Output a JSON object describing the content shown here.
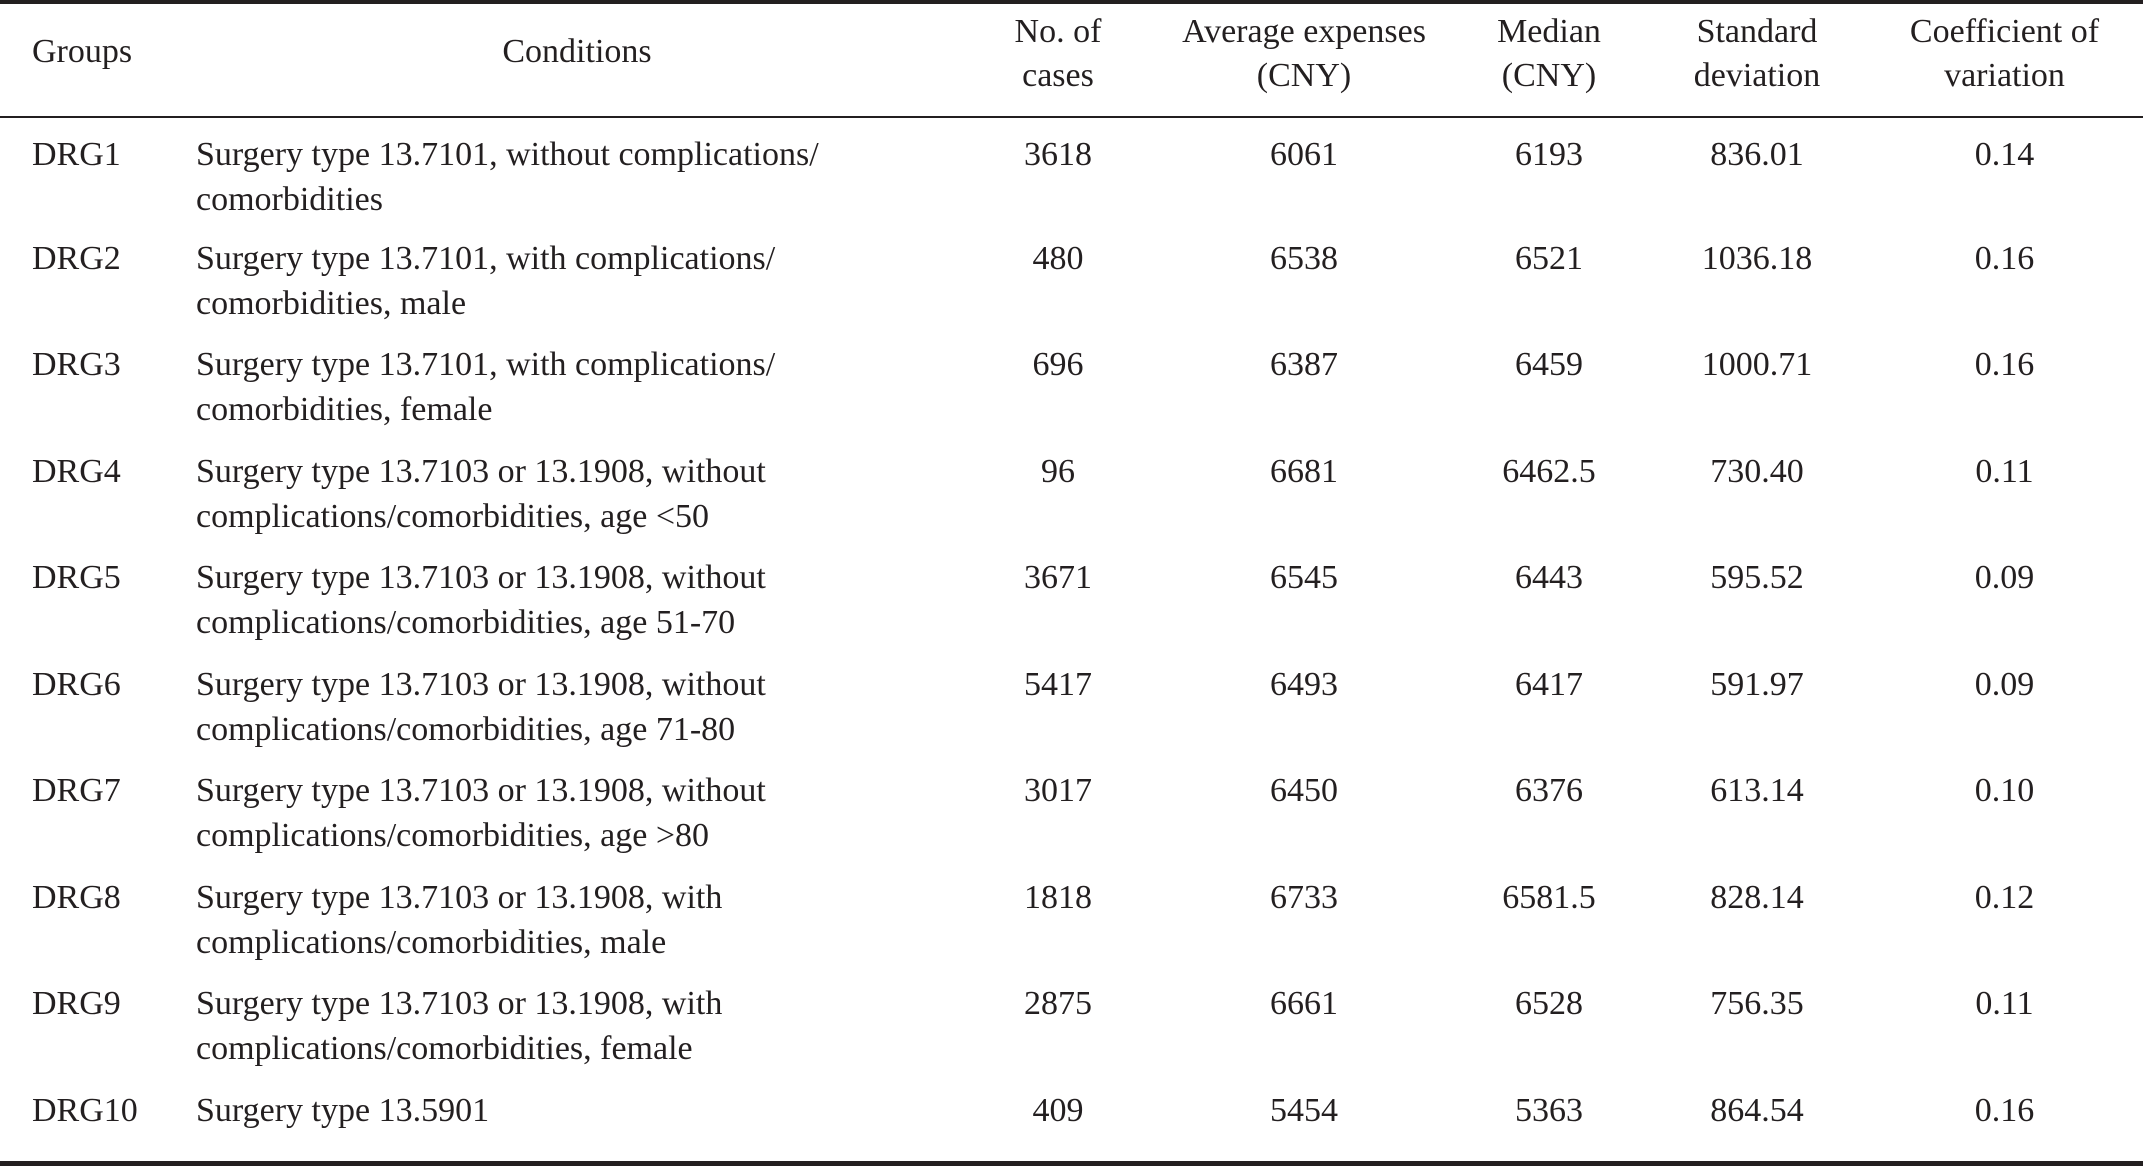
{
  "table": {
    "headers": [
      {
        "key": "group",
        "label": "Groups"
      },
      {
        "key": "conditions",
        "label": "Conditions"
      },
      {
        "key": "cases",
        "label": "No. of\ncases"
      },
      {
        "key": "avg",
        "label": "Average expenses\n(CNY)"
      },
      {
        "key": "median",
        "label": "Median\n(CNY)"
      },
      {
        "key": "sd",
        "label": "Standard\ndeviation"
      },
      {
        "key": "cv",
        "label": "Coefficient of\nvariation"
      }
    ],
    "rows": [
      {
        "group": "DRG1",
        "conditions": "Surgery type 13.7101, without complications/ comorbidities",
        "cases": "3618",
        "avg": "6061",
        "median": "6193",
        "sd": "836.01",
        "cv": "0.14"
      },
      {
        "group": "DRG2",
        "conditions": "Surgery type 13.7101, with complications/ comorbidities, male",
        "cases": "480",
        "avg": "6538",
        "median": "6521",
        "sd": "1036.18",
        "cv": "0.16"
      },
      {
        "group": "DRG3",
        "conditions": "Surgery type 13.7101, with complications/ comorbidities, female",
        "cases": "696",
        "avg": "6387",
        "median": "6459",
        "sd": "1000.71",
        "cv": "0.16"
      },
      {
        "group": "DRG4",
        "conditions": "Surgery type 13.7103 or 13.1908, without complications/comorbidities, age <50",
        "cases": "96",
        "avg": "6681",
        "median": "6462.5",
        "sd": "730.40",
        "cv": "0.11"
      },
      {
        "group": "DRG5",
        "conditions": "Surgery type 13.7103 or 13.1908, without complications/comorbidities, age 51-70",
        "cases": "3671",
        "avg": "6545",
        "median": "6443",
        "sd": "595.52",
        "cv": "0.09"
      },
      {
        "group": "DRG6",
        "conditions": "Surgery type 13.7103 or 13.1908, without complications/comorbidities, age 71-80",
        "cases": "5417",
        "avg": "6493",
        "median": "6417",
        "sd": "591.97",
        "cv": "0.09"
      },
      {
        "group": "DRG7",
        "conditions": "Surgery type 13.7103 or 13.1908, without complications/comorbidities, age >80",
        "cases": "3017",
        "avg": "6450",
        "median": "6376",
        "sd": "613.14",
        "cv": "0.10"
      },
      {
        "group": "DRG8",
        "conditions": "Surgery type 13.7103 or 13.1908, with complications/comorbidities, male",
        "cases": "1818",
        "avg": "6733",
        "median": "6581.5",
        "sd": "828.14",
        "cv": "0.12"
      },
      {
        "group": "DRG9",
        "conditions": "Surgery type 13.7103 or 13.1908, with complications/comorbidities, female",
        "cases": "2875",
        "avg": "6661",
        "median": "6528",
        "sd": "756.35",
        "cv": "0.11"
      },
      {
        "group": "DRG10",
        "conditions": "Surgery type 13.5901",
        "cases": "409",
        "avg": "5454",
        "median": "5363",
        "sd": "864.54",
        "cv": "0.16"
      }
    ]
  }
}
